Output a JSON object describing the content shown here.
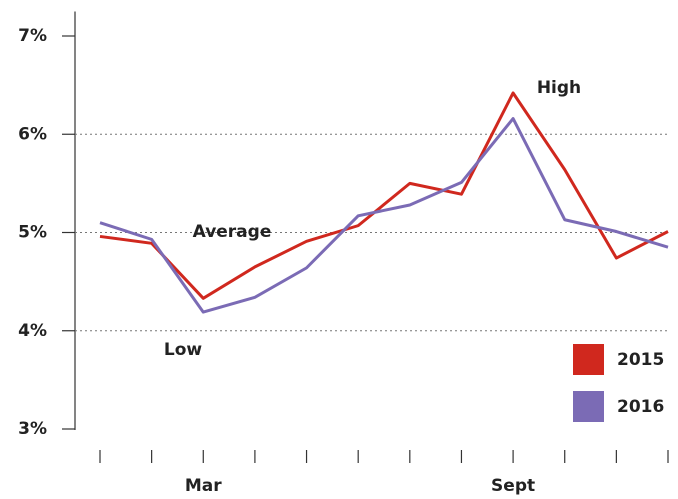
{
  "chart_data": {
    "type": "line",
    "categories": [
      null,
      null,
      "Mar",
      null,
      null,
      null,
      null,
      null,
      "Sept",
      null,
      null,
      null
    ],
    "series": [
      {
        "name": "2015",
        "color": "#d0281e",
        "values": [
          4.96,
          4.89,
          4.33,
          4.65,
          4.91,
          5.07,
          5.5,
          5.39,
          6.42,
          5.64,
          4.74,
          5.01
        ]
      },
      {
        "name": "2016",
        "color": "#7b6bb5",
        "values": [
          5.1,
          4.93,
          4.19,
          4.34,
          4.64,
          5.17,
          5.28,
          5.51,
          6.16,
          5.13,
          5.01,
          4.85
        ]
      }
    ],
    "ylim": [
      3,
      7.25
    ],
    "yticks": [
      {
        "value": 3,
        "label": "3%"
      },
      {
        "value": 4,
        "label": "4%"
      },
      {
        "value": 5,
        "label": "5%"
      },
      {
        "value": 6,
        "label": "6%"
      },
      {
        "value": 7,
        "label": "7%"
      }
    ],
    "grid": true,
    "annotations": [
      "High",
      "Average",
      "Low"
    ],
    "legend": "lower right"
  }
}
